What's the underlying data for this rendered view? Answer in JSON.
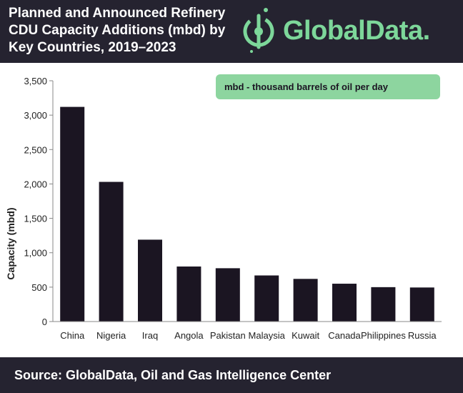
{
  "header": {
    "title_lines": [
      "Planned and Announced Refinery",
      "CDU Capacity Additions (mbd) by",
      "Key Countries, 2019–2023"
    ],
    "logo_text": "GlobalData."
  },
  "colors": {
    "header_bg": "#252330",
    "bar": "#1b1522",
    "accent": "#7dd79a",
    "note_bg": "#8dd59f",
    "axis": "#888888",
    "text": "#222222"
  },
  "icons": [
    "globaldata-logo-icon"
  ],
  "chart_data": {
    "type": "bar",
    "categories": [
      "China",
      "Nigeria",
      "Iraq",
      "Angola",
      "Pakistan",
      "Malaysia",
      "Kuwait",
      "Canada",
      "Philippines",
      "Russia"
    ],
    "values": [
      3120,
      2030,
      1190,
      800,
      775,
      670,
      620,
      550,
      500,
      495
    ],
    "title": "Planned and Announced Refinery CDU Capacity Additions (mbd) by Key Countries, 2019–2023",
    "xlabel": "",
    "ylabel": "Capacity (mbd)",
    "ylim": [
      0,
      3500
    ],
    "yticks": [
      0,
      500,
      1000,
      1500,
      2000,
      2500,
      3000,
      3500
    ],
    "ytick_labels": [
      "0",
      "500",
      "1,000",
      "1,500",
      "2,000",
      "2,500",
      "3,000",
      "3,500"
    ],
    "grid": false,
    "legend": "none",
    "annotation": "mbd - thousand barrels of oil per day"
  },
  "footer": {
    "source": "Source: GlobalData, Oil and Gas Intelligence Center"
  }
}
